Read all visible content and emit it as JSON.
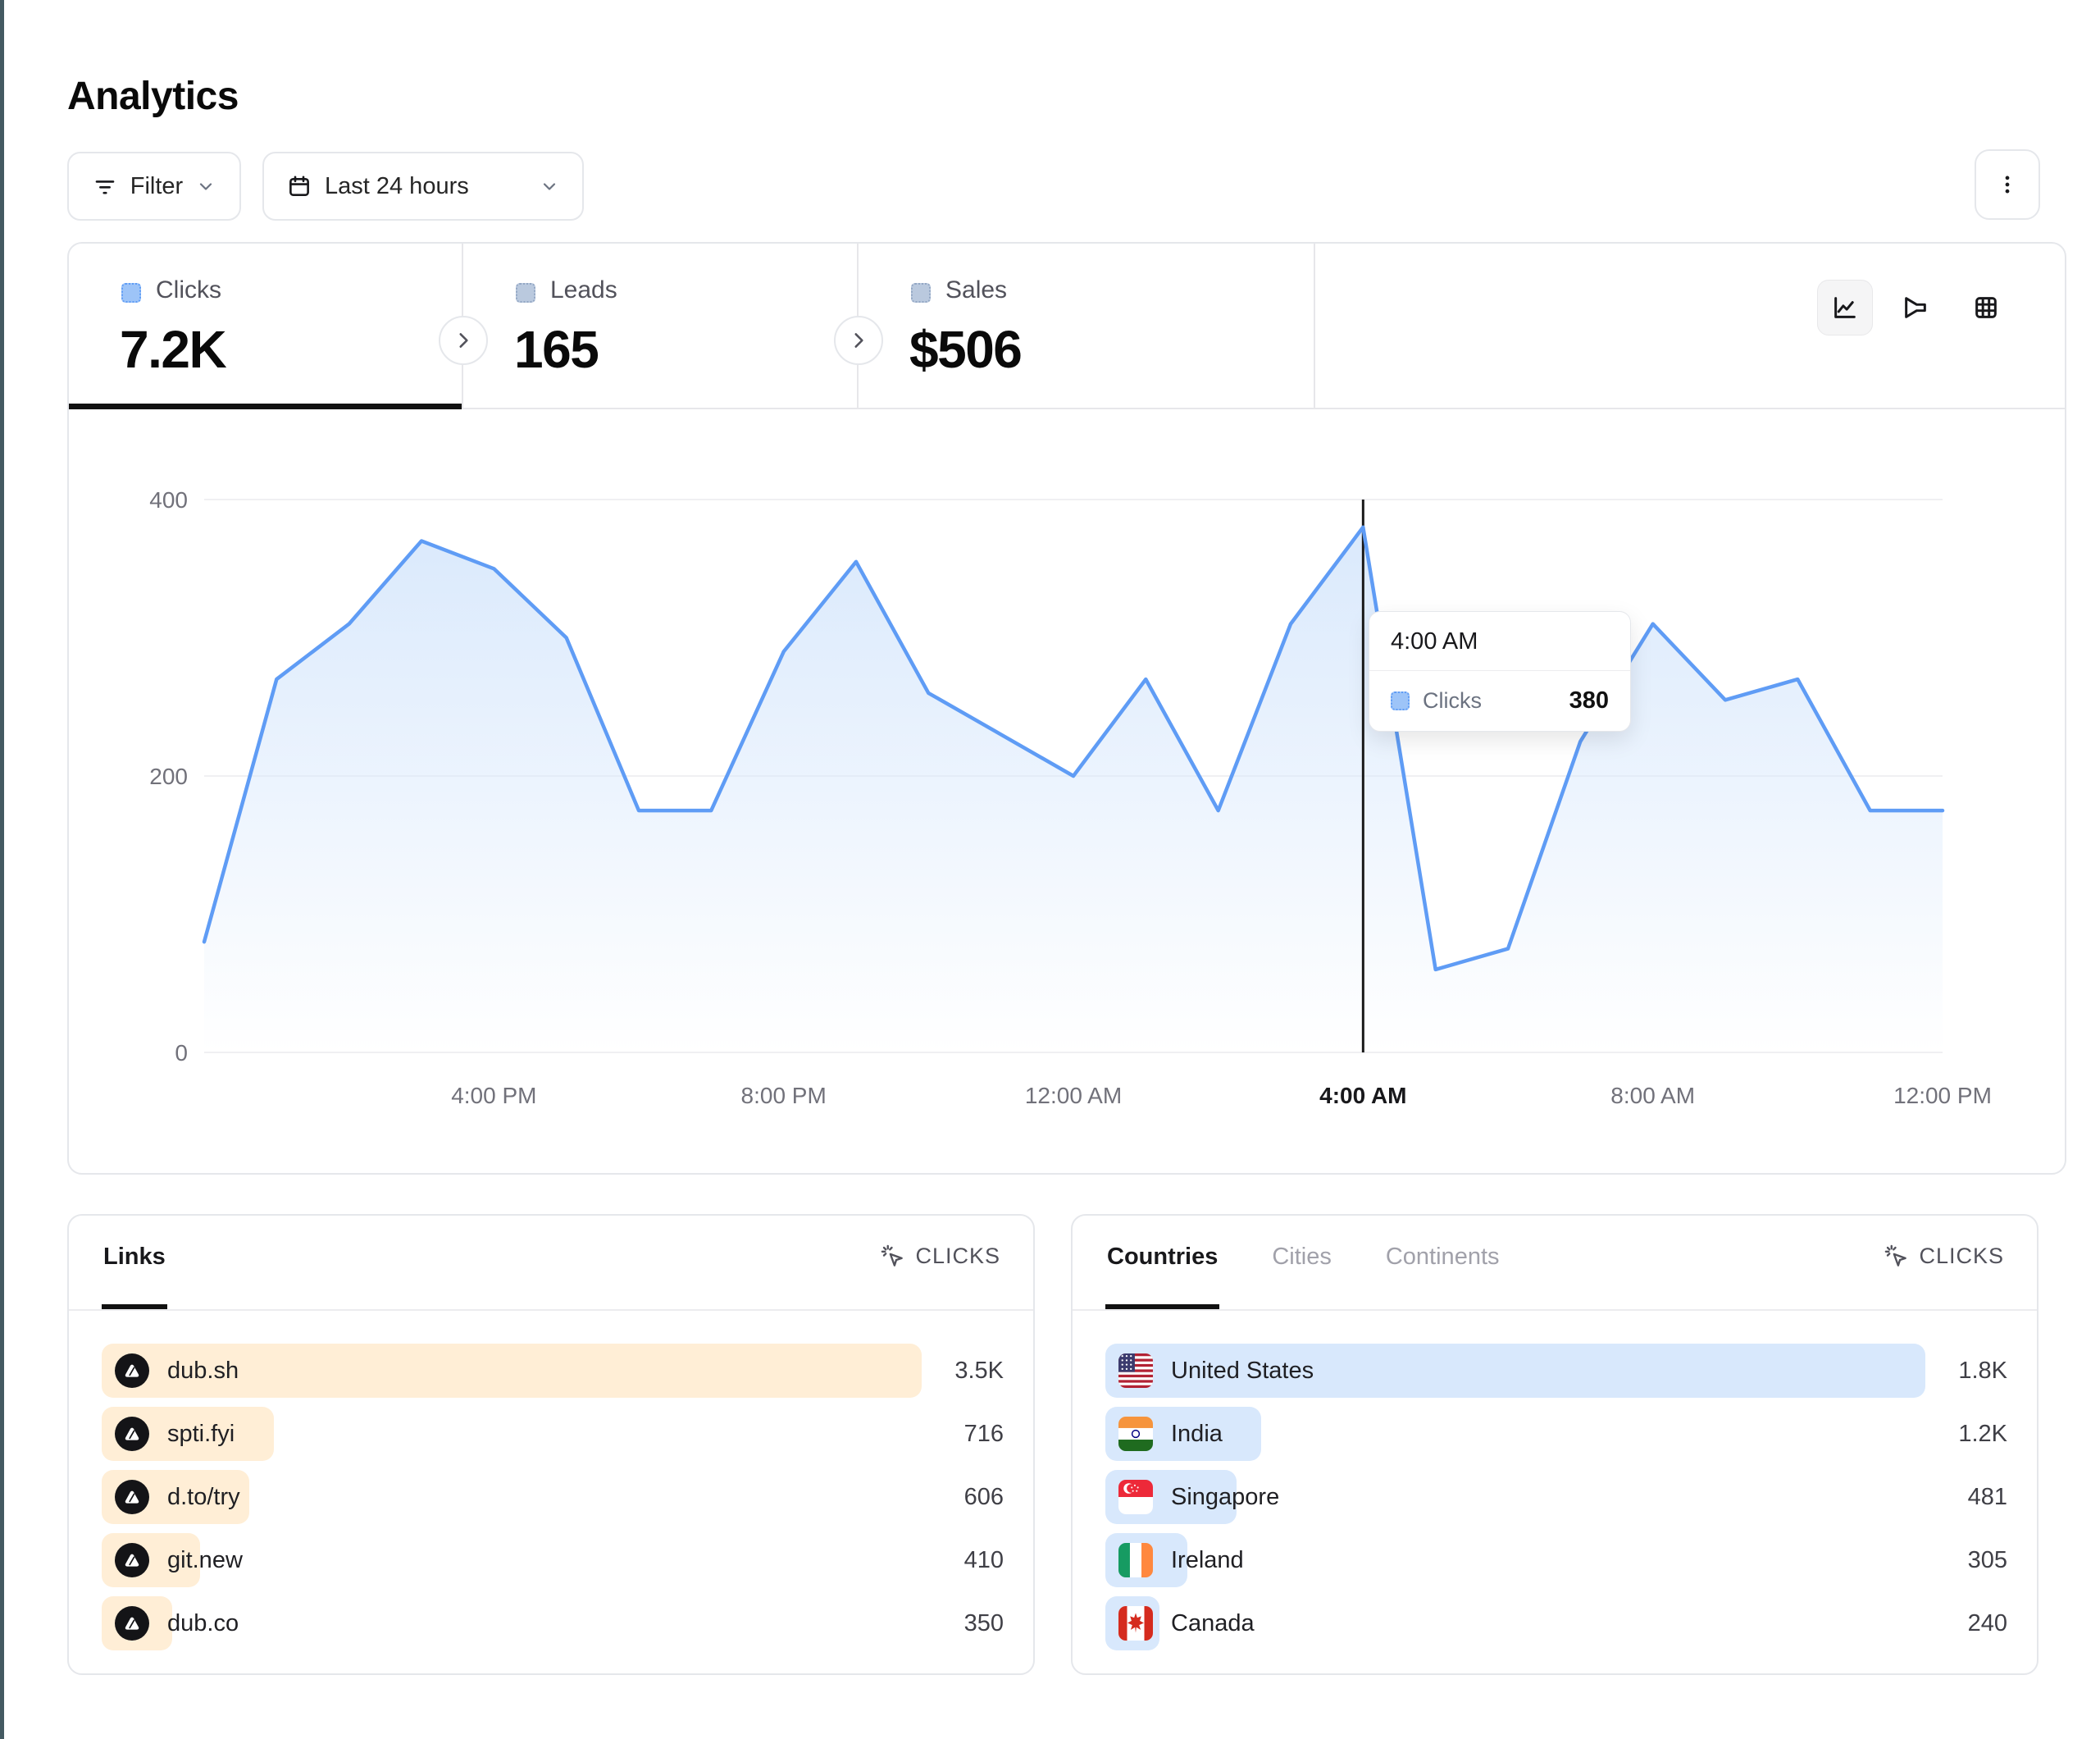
{
  "page": {
    "title": "Analytics"
  },
  "toolbar": {
    "filter_label": "Filter",
    "date_range_label": "Last 24 hours"
  },
  "icons": {
    "filter": "filter-lines-icon",
    "date_range": "calendar-icon",
    "menu": "kebab-menu-icon",
    "chart_toggles": [
      "line-chart-icon",
      "funnel-chart-icon",
      "table-icon"
    ],
    "metric_selector": "cursor-click-icon",
    "card_cycle": "chevron-right-icon"
  },
  "metrics": [
    {
      "label": "Clicks",
      "value": "7.2K",
      "active": true
    },
    {
      "label": "Leads",
      "value": "165",
      "active": false
    },
    {
      "label": "Sales",
      "value": "$506",
      "active": false
    }
  ],
  "chart_data": {
    "type": "area",
    "title": "Clicks over last 24 hours",
    "x": [
      "12:00 PM",
      "1:00 PM",
      "2:00 PM",
      "3:00 PM",
      "4:00 PM",
      "5:00 PM",
      "6:00 PM",
      "7:00 PM",
      "8:00 PM",
      "9:00 PM",
      "10:00 PM",
      "11:00 PM",
      "12:00 AM",
      "1:00 AM",
      "2:00 AM",
      "3:00 AM",
      "4:00 AM",
      "5:00 AM",
      "6:00 AM",
      "7:00 AM",
      "8:00 AM",
      "9:00 AM",
      "10:00 AM",
      "11:00 AM",
      "12:00 PM"
    ],
    "series": [
      {
        "name": "Clicks",
        "values": [
          80,
          270,
          310,
          370,
          350,
          300,
          175,
          175,
          290,
          355,
          260,
          230,
          200,
          270,
          175,
          310,
          380,
          60,
          75,
          225,
          310,
          255,
          270,
          175,
          175
        ]
      }
    ],
    "ylim": [
      0,
      400
    ],
    "yticks": [
      0,
      200,
      400
    ],
    "xticks": [
      "4:00 PM",
      "8:00 PM",
      "12:00 AM",
      "4:00 AM",
      "8:00 AM",
      "12:00 PM"
    ],
    "xtick_step": 4,
    "highlighted_xtick": "4:00 AM",
    "grid": "horizontal",
    "legend_position": "none"
  },
  "tooltip": {
    "time": "4:00 AM",
    "series_label": "Clicks",
    "value": "380"
  },
  "links_panel": {
    "tab_label": "Links",
    "metric_label": "CLICKS",
    "rows": [
      {
        "label": "dub.sh",
        "value": "3.5K",
        "bar": 1.0
      },
      {
        "label": "spti.fyi",
        "value": "716",
        "bar": 0.21
      },
      {
        "label": "d.to/try",
        "value": "606",
        "bar": 0.18
      },
      {
        "label": "git.new",
        "value": "410",
        "bar": 0.12
      },
      {
        "label": "dub.co",
        "value": "350",
        "bar": 0.086
      }
    ]
  },
  "countries_panel": {
    "tabs": [
      "Countries",
      "Cities",
      "Continents"
    ],
    "active_tab": "Countries",
    "metric_label": "CLICKS",
    "rows": [
      {
        "label": "United States",
        "flag": "us",
        "value": "1.8K",
        "bar": 1.0
      },
      {
        "label": "India",
        "flag": "in",
        "value": "1.2K",
        "bar": 0.19
      },
      {
        "label": "Singapore",
        "flag": "sg",
        "value": "481",
        "bar": 0.16
      },
      {
        "label": "Ireland",
        "flag": "ie",
        "value": "305",
        "bar": 0.1
      },
      {
        "label": "Canada",
        "flag": "ca",
        "value": "240",
        "bar": 0.065
      }
    ]
  },
  "colors": {
    "accent_line": "#5f9cf5",
    "area_top": "#d8e8fc",
    "clicks_legend_fill": "#9dc4f8",
    "clicks_legend_border": "#5f9cf5",
    "muted_legend_fill": "#bac9de",
    "muted_legend_border": "#93a7c4",
    "links_bar": "#ffeed6",
    "countries_bar": "#d8e8fc",
    "active_tab_underline": "#111111",
    "crosshair": "#1a1a1a",
    "gridline": "#f0f0f2",
    "left_edge_strip": "#445a62"
  }
}
